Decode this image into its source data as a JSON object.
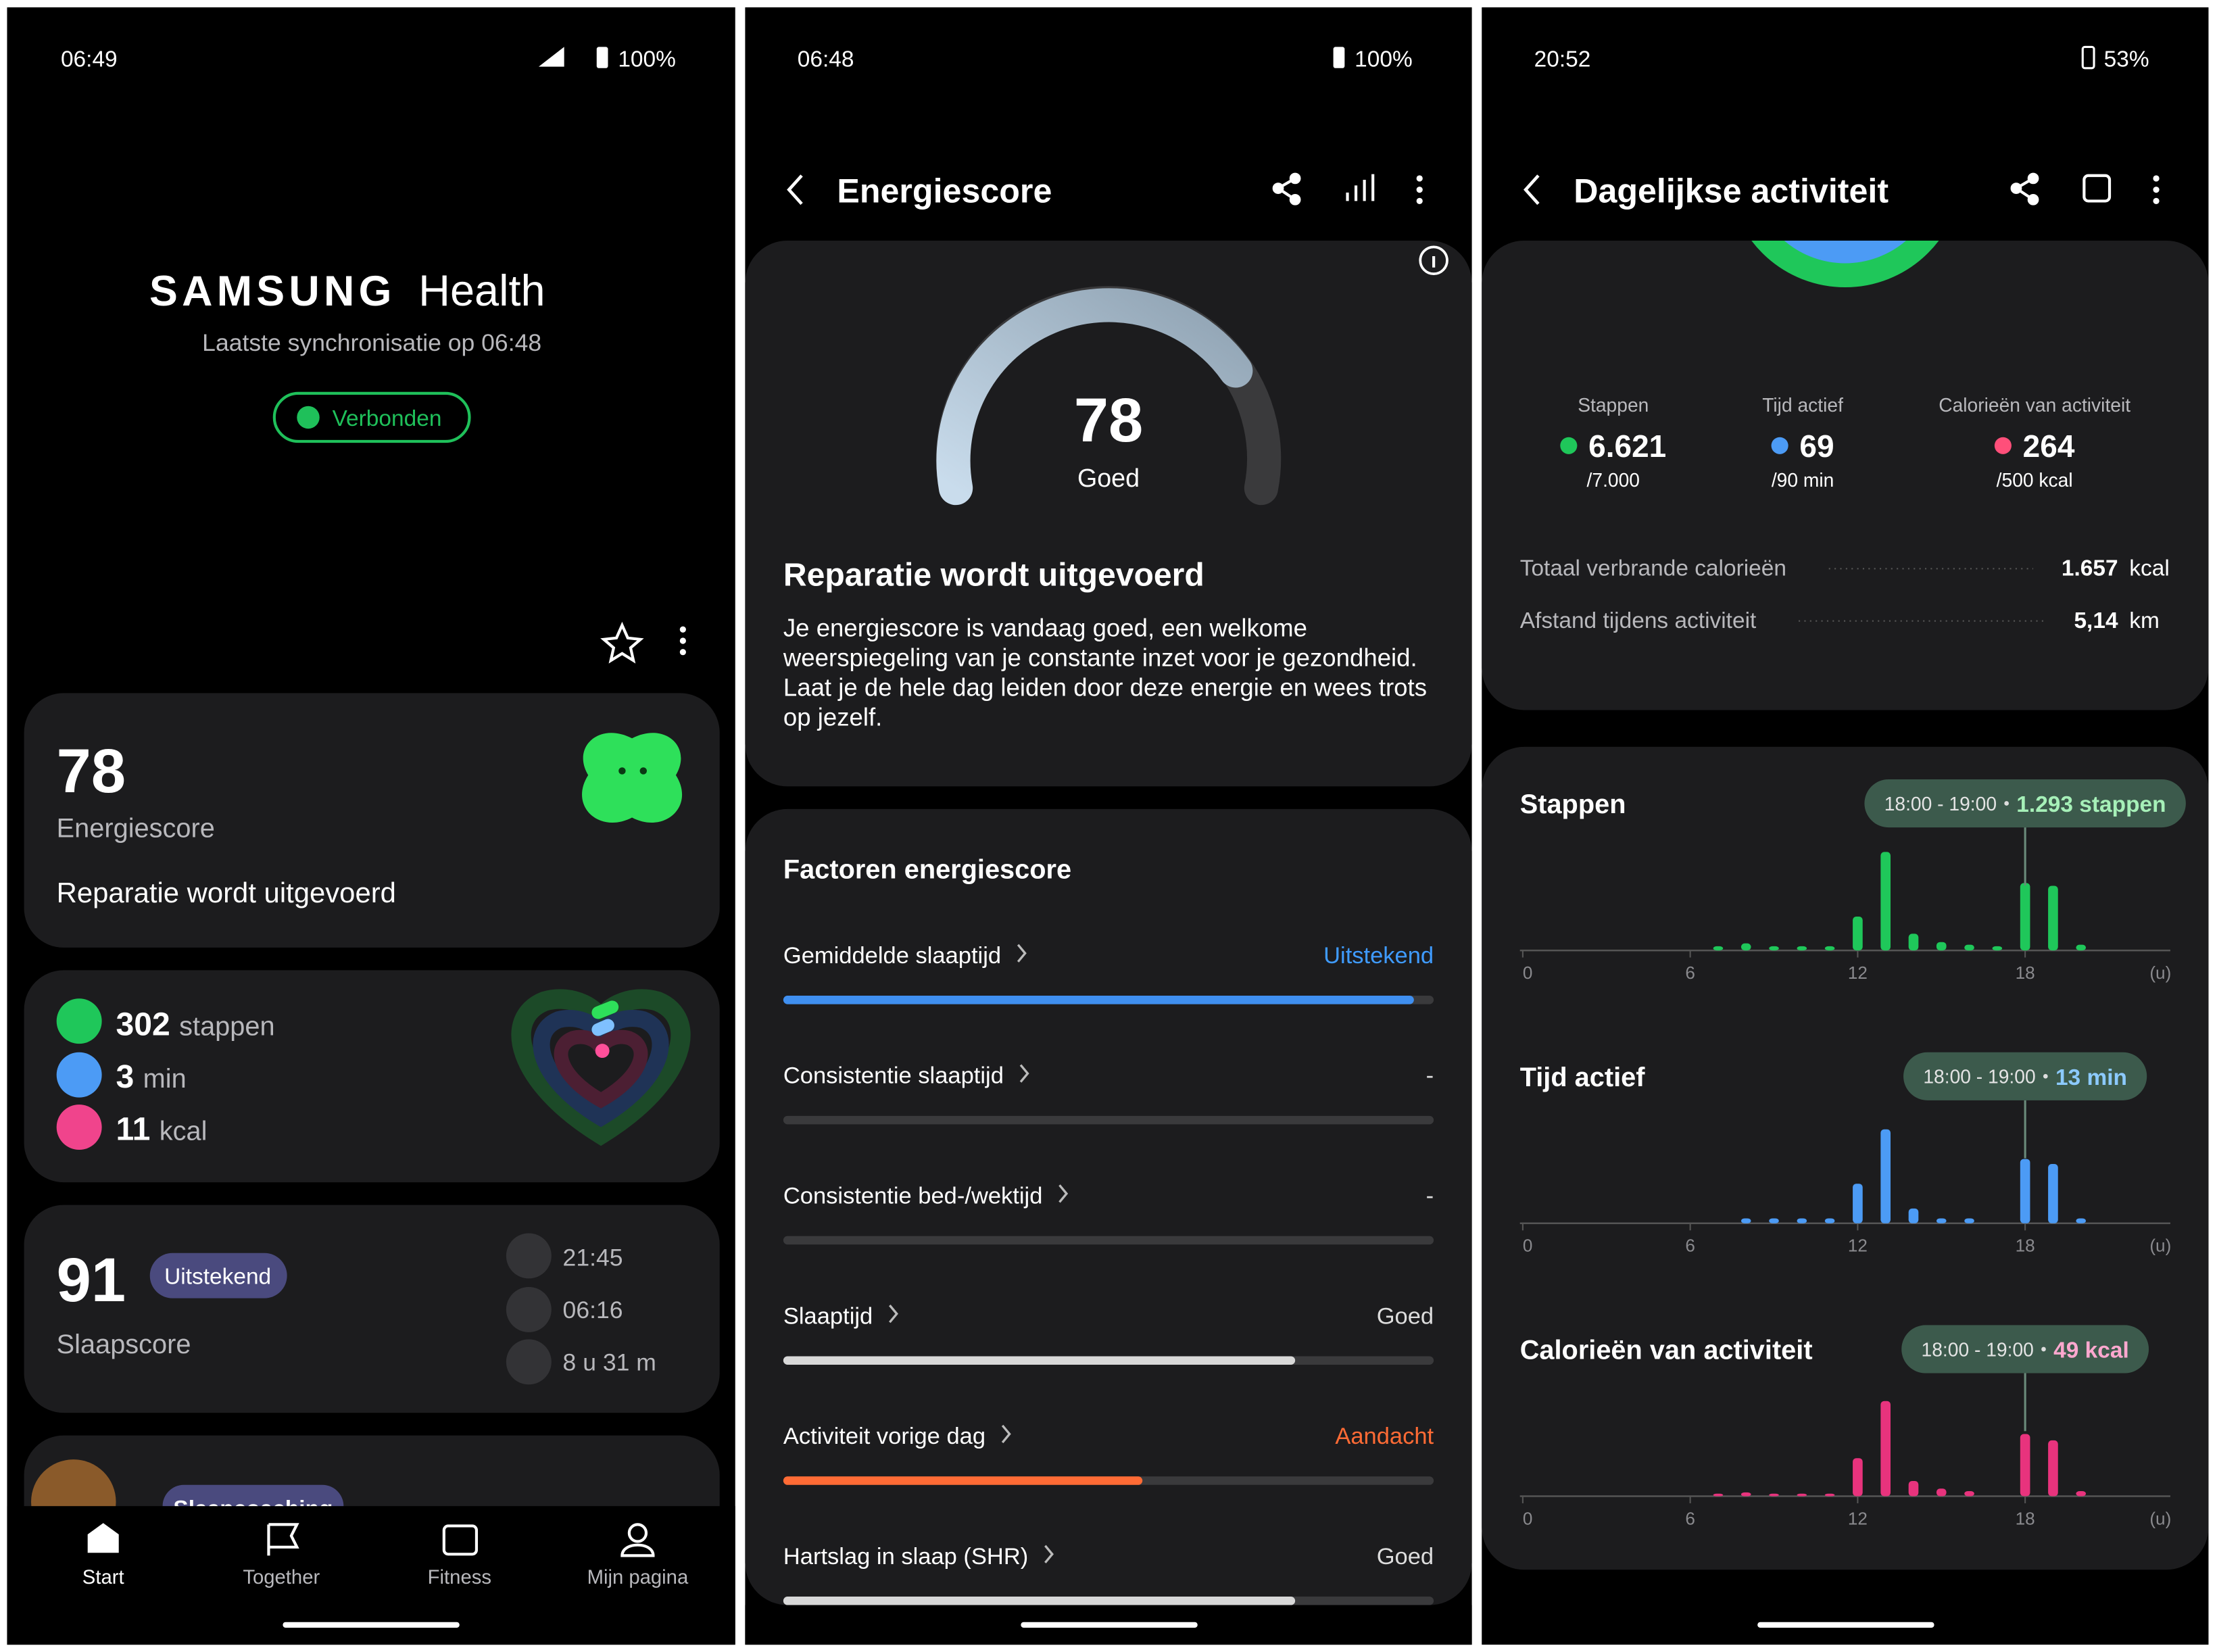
{
  "screens": [
    {
      "status": {
        "time": "06:49",
        "battery": "100%"
      },
      "header": {
        "brand": "SAMSUNG",
        "app": "Health",
        "sync": "Laatste synchronisatie op 06:48",
        "connection": "Verbonden"
      },
      "energy_card": {
        "score": 78,
        "label": "Energiescore",
        "status": "Reparatie wordt uitgevoerd"
      },
      "activity_card": {
        "steps": 302,
        "steps_unit": "stappen",
        "minutes": 3,
        "minutes_unit": "min",
        "calories": 11,
        "calories_unit": "kcal"
      },
      "sleep_card": {
        "score": 91,
        "badge": "Uitstekend",
        "label": "Slaapscore",
        "bedtime": "21:45",
        "wake_time": "06:16",
        "duration": "8 u 31 m"
      },
      "coaching_card": {
        "badge": "Slaapcoaching"
      },
      "nav": [
        "Start",
        "Together",
        "Fitness",
        "Mijn pagina"
      ]
    },
    {
      "status": {
        "time": "06:48",
        "battery": "100%"
      },
      "title": "Energiescore",
      "score": {
        "value": 78,
        "rating": "Goed"
      },
      "summary": {
        "heading": "Reparatie wordt uitgevoerd",
        "lines": [
          "Je energiescore is vandaag goed, een welkome",
          "weerspiegeling van je constante inzet voor je gezondheid.",
          "Laat je de hele dag leiden door deze energie en wees trots",
          "op jezelf."
        ]
      },
      "factors": {
        "heading": "Factoren energiescore",
        "items": [
          {
            "name": "Gemiddelde slaaptijd",
            "rating": "Uitstekend"
          },
          {
            "name": "Consistentie slaaptijd",
            "rating": "-"
          },
          {
            "name": "Consistentie bed-/wektijd",
            "rating": "-"
          },
          {
            "name": "Slaaptijd",
            "rating": "Goed"
          },
          {
            "name": "Activiteit vorige dag",
            "rating": "Aandacht"
          },
          {
            "name": "Hartslag in slaap (SHR)",
            "rating": "Goed"
          }
        ]
      }
    },
    {
      "status": {
        "time": "20:52",
        "battery": "53%"
      },
      "title": "Dagelijkse activiteit",
      "summary": [
        {
          "label": "Stappen",
          "value": "6.621",
          "goal": "/7.000"
        },
        {
          "label": "Tijd actief",
          "value": "69",
          "goal": "/90 min"
        },
        {
          "label": "Calorieën van activiteit",
          "value": "264",
          "goal": "/500 kcal"
        }
      ],
      "totals": [
        {
          "label": "Totaal verbrande calorieën",
          "value": "1.657",
          "unit": "kcal"
        },
        {
          "label": "Afstand tijdens activiteit",
          "value": "5,14",
          "unit": "km"
        }
      ],
      "charts": [
        {
          "type": "bar",
          "title": "Stappen",
          "tooltip_time": "18:00 - 19:00",
          "tooltip_value": "1.293 stappen",
          "x": [
            7,
            8,
            9,
            10,
            11,
            12,
            13,
            14,
            15,
            16,
            17,
            18,
            19,
            20
          ],
          "values": [
            80,
            135,
            80,
            80,
            80,
            650,
            1890,
            320,
            160,
            110,
            80,
            1293,
            1240,
            110
          ],
          "color": "#1fc75a",
          "xlim": [
            0,
            23
          ],
          "ylim": [
            0,
            1900
          ],
          "xticks": [
            0,
            6,
            12,
            18
          ],
          "x_unit": "(u)"
        },
        {
          "type": "bar",
          "title": "Tijd actief",
          "tooltip_time": "18:00 - 19:00",
          "tooltip_value": "13 min",
          "x": [
            8,
            9,
            10,
            11,
            12,
            13,
            14,
            15,
            16,
            18,
            19,
            20
          ],
          "values": [
            1,
            1,
            1,
            1,
            8,
            19,
            3,
            1,
            1,
            13,
            12,
            1
          ],
          "color": "#4c9bf5",
          "xlim": [
            0,
            23
          ],
          "ylim": [
            0,
            20
          ],
          "xticks": [
            0,
            6,
            12,
            18
          ],
          "x_unit": "(u)"
        },
        {
          "type": "bar",
          "title": "Calorieën van activiteit",
          "tooltip_time": "18:00 - 19:00",
          "tooltip_value": "49 kcal",
          "x": [
            7,
            8,
            9,
            10,
            11,
            12,
            13,
            14,
            15,
            16,
            18,
            19,
            20
          ],
          "values": [
            2,
            3,
            2,
            2,
            2,
            30,
            75,
            12,
            6,
            4,
            49,
            44,
            4
          ],
          "color": "#e8337d",
          "xlim": [
            0,
            23
          ],
          "ylim": [
            0,
            78
          ],
          "xticks": [
            0,
            6,
            12,
            18
          ],
          "x_unit": "(u)"
        }
      ]
    }
  ]
}
